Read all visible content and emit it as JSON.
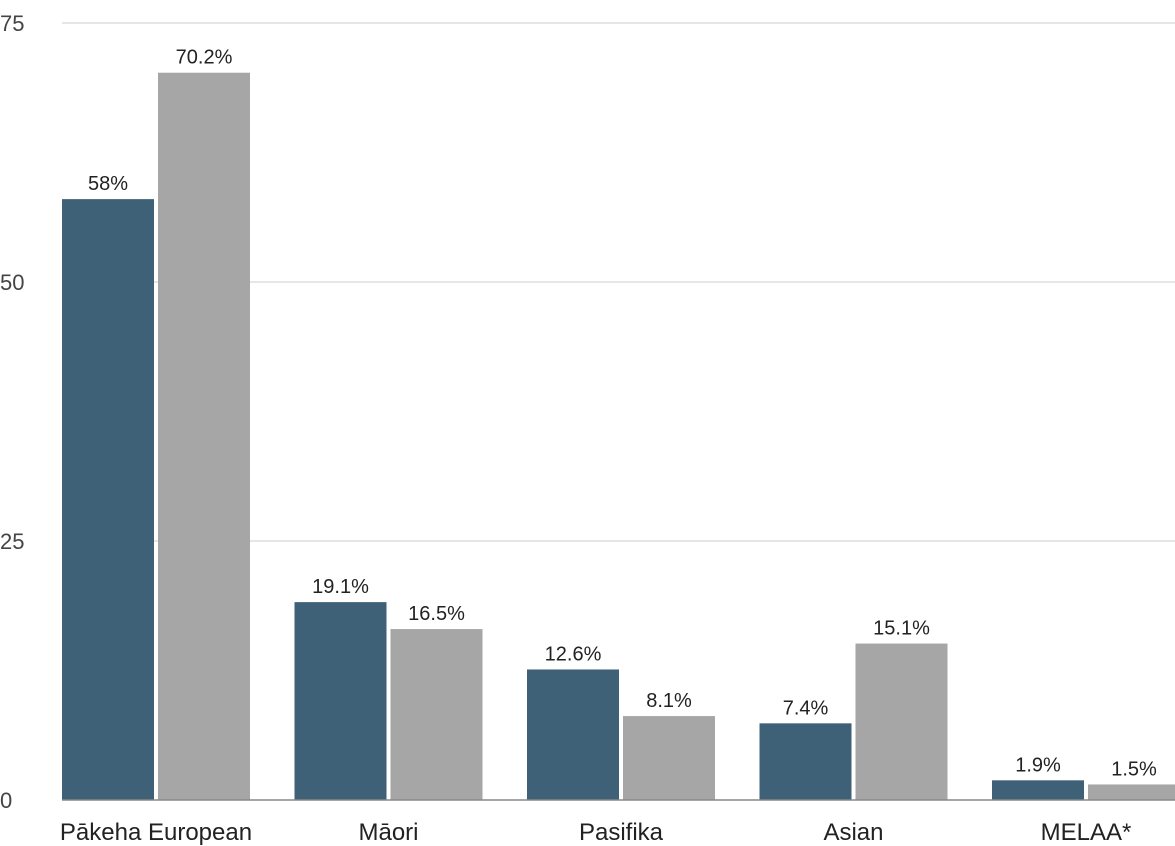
{
  "chart_data": {
    "type": "bar",
    "categories": [
      "Pākeha European",
      "Māori",
      "Pasifika",
      "Asian",
      "MELAA*"
    ],
    "series": [
      {
        "color": "#3f6177",
        "values": [
          58,
          19.1,
          12.6,
          7.4,
          1.9
        ],
        "labels": [
          "58%",
          "19.1%",
          "12.6%",
          "7.4%",
          "1.9%"
        ]
      },
      {
        "color": "#a6a6a6",
        "values": [
          70.2,
          16.5,
          8.1,
          15.1,
          1.5
        ],
        "labels": [
          "70.2%",
          "16.5%",
          "8.1%",
          "15.1%",
          "1.5%"
        ]
      }
    ],
    "yticks": [
      {
        "value": 0,
        "label": "0"
      },
      {
        "value": 25,
        "label": "25"
      },
      {
        "value": 50,
        "label": "50"
      },
      {
        "value": 75,
        "label": "75"
      }
    ],
    "ylim": [
      0,
      75
    ],
    "grid": true,
    "legend": "none"
  }
}
